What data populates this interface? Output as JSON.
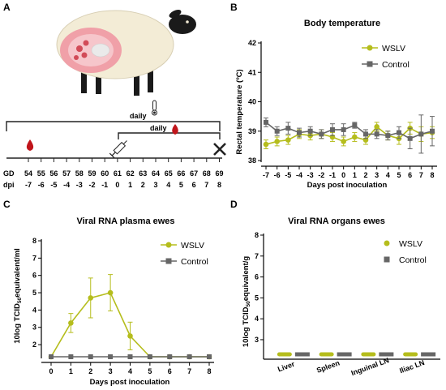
{
  "panels": {
    "a": {
      "letter": "A",
      "daily_label_1": "daily",
      "daily_label_2": "daily",
      "gd_label": "GD",
      "dpi_label": "dpi",
      "gd_values": [
        "54",
        "55",
        "56",
        "57",
        "58",
        "59",
        "60",
        "61",
        "62",
        "63",
        "64",
        "65",
        "66",
        "67",
        "68",
        "69"
      ],
      "dpi_values": [
        "-7",
        "-6",
        "-5",
        "-4",
        "-3",
        "-2",
        "-1",
        "0",
        "1",
        "2",
        "3",
        "4",
        "5",
        "6",
        "7",
        "8"
      ],
      "icons": [
        "sheep-illustration",
        "thermometer-icon",
        "blood-drop-icon",
        "syringe-icon",
        "cross-mark-icon"
      ],
      "colors": {
        "blood": "#c0151b",
        "uterus": "#f0a0a8",
        "sheep_body": "#f3ecd6"
      }
    },
    "b": {
      "letter": "B"
    },
    "c": {
      "letter": "C"
    },
    "d": {
      "letter": "D"
    }
  },
  "colors": {
    "wslv": "#b5bd1c",
    "control": "#666666"
  },
  "chart_data": [
    {
      "id": "B",
      "type": "line",
      "title": "Body temperature",
      "xlabel": "Days post inoculation",
      "ylabel": "Rectal temperature (ºC)",
      "x": [
        -7,
        -6,
        -5,
        -4,
        -3,
        -2,
        -1,
        0,
        1,
        2,
        3,
        4,
        5,
        6,
        7,
        8
      ],
      "x_ticks": [
        "-7",
        "-6",
        "-5",
        "-4",
        "-3",
        "-2",
        "-1",
        "0",
        "1",
        "2",
        "3",
        "4",
        "5",
        "6",
        "7",
        "8"
      ],
      "ylim": [
        38,
        42
      ],
      "y_ticks": [
        "38",
        "39",
        "40",
        "41",
        "42"
      ],
      "legend_position": "top-right",
      "series": [
        {
          "name": "WSLV",
          "values": [
            38.55,
            38.65,
            38.7,
            38.9,
            38.85,
            38.9,
            38.8,
            38.65,
            38.8,
            38.7,
            39.15,
            38.85,
            38.75,
            39.1,
            38.9,
            38.95
          ],
          "errors": [
            0.15,
            0.15,
            0.15,
            0.15,
            0.15,
            0.15,
            0.15,
            0.15,
            0.15,
            0.15,
            0.15,
            0.15,
            0.2,
            0.2,
            0.25,
            0.2
          ]
        },
        {
          "name": "Control",
          "values": [
            39.3,
            39.0,
            39.1,
            38.95,
            39.0,
            38.9,
            39.05,
            39.05,
            39.2,
            38.9,
            38.9,
            38.85,
            38.95,
            38.75,
            38.9,
            39.0
          ],
          "errors": [
            0.15,
            0.15,
            0.2,
            0.15,
            0.15,
            0.15,
            0.2,
            0.2,
            0.1,
            0.15,
            0.15,
            0.15,
            0.2,
            0.35,
            0.65,
            0.5
          ]
        }
      ]
    },
    {
      "id": "C",
      "type": "line",
      "title": "Viral RNA plasma ewes",
      "xlabel": "Days post inoculation",
      "ylabel_main": "10log TCID",
      "ylabel_sub": "50",
      "ylabel_tail": "equivalent/ml",
      "x": [
        0,
        1,
        2,
        3,
        4,
        5,
        6,
        7,
        8
      ],
      "x_ticks": [
        "0",
        "1",
        "2",
        "3",
        "4",
        "5",
        "6",
        "7",
        "8"
      ],
      "ylim": [
        1.3,
        8
      ],
      "y_tick_values": [
        2,
        3,
        4,
        5,
        6,
        7,
        8
      ],
      "y_ticks": [
        "2",
        "3",
        "4",
        "5",
        "6",
        "7",
        "8"
      ],
      "legend_position": "top-right",
      "series": [
        {
          "name": "WSLV",
          "values": [
            1.3,
            3.25,
            4.7,
            5.0,
            2.5,
            1.3,
            1.3,
            1.3,
            1.3
          ],
          "errors": [
            0,
            0.55,
            1.15,
            1.05,
            0.8,
            0,
            0,
            0,
            0
          ]
        },
        {
          "name": "Control",
          "values": [
            1.3,
            1.3,
            1.3,
            1.3,
            1.3,
            1.3,
            1.3,
            1.3,
            1.3
          ],
          "errors": [
            0,
            0,
            0,
            0,
            0,
            0,
            0,
            0,
            0
          ]
        }
      ]
    },
    {
      "id": "D",
      "type": "scatter",
      "title": "Viral RNA organs ewes",
      "ylabel_main": "10log TCID",
      "ylabel_sub": "50",
      "ylabel_tail": "equivalent/g",
      "categories": [
        "Liver",
        "Spleen",
        "Inguinal LN",
        "Iliac LN"
      ],
      "ylim": [
        2.3,
        8
      ],
      "y_tick_values": [
        3,
        4,
        5,
        6,
        7,
        8
      ],
      "y_ticks": [
        "3",
        "4",
        "5",
        "6",
        "7",
        "8"
      ],
      "legend_position": "top-right",
      "series": [
        {
          "name": "WSLV",
          "values": [
            2.3,
            2.3,
            2.3,
            2.3
          ]
        },
        {
          "name": "Control",
          "values": [
            2.3,
            2.3,
            2.3,
            2.3
          ]
        }
      ]
    }
  ]
}
